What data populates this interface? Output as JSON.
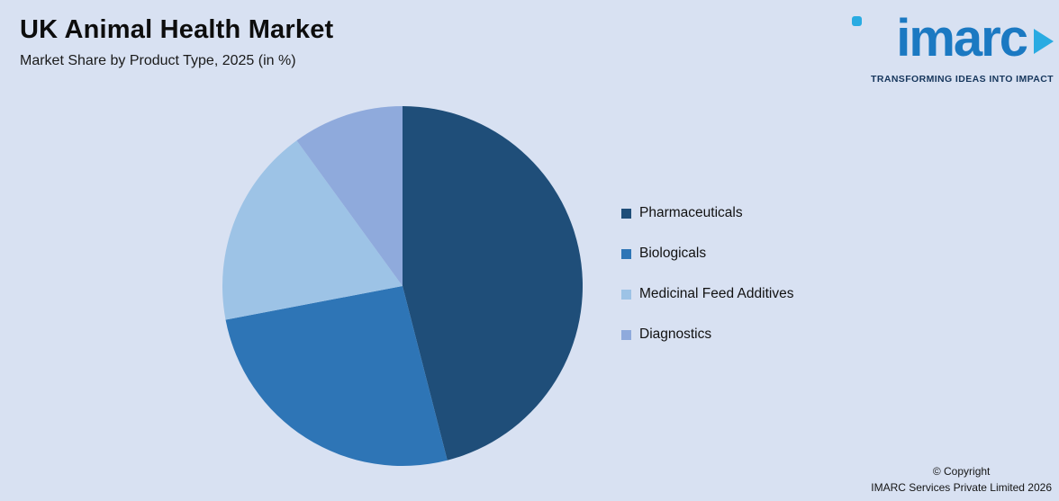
{
  "page": {
    "title": "UK Animal Health Market",
    "subtitle": "Market Share by Product Type, 2025 (in %)",
    "background_color": "#d8e1f2"
  },
  "logo": {
    "text": "imarc",
    "tagline": "TRANSFORMING IDEAS INTO IMPACT",
    "brand_color": "#1b79c2",
    "accent_color": "#29abe2"
  },
  "chart_data": {
    "type": "pie",
    "title": "UK Animal Health Market",
    "subtitle": "Market Share by Product Type, 2025 (in %)",
    "categories": [
      "Pharmaceuticals",
      "Biologicals",
      "Medicinal Feed Additives",
      "Diagnostics"
    ],
    "values": [
      46,
      26,
      18,
      10
    ],
    "colors": [
      "#1f4e79",
      "#2e75b6",
      "#9dc3e6",
      "#8faadc"
    ],
    "start_angle_deg": 0,
    "direction": "clockwise",
    "legend_position": "right",
    "data_labels": false
  },
  "footer": {
    "copyright_line1": "© Copyright",
    "copyright_line2": "IMARC Services Private Limited 2026"
  }
}
